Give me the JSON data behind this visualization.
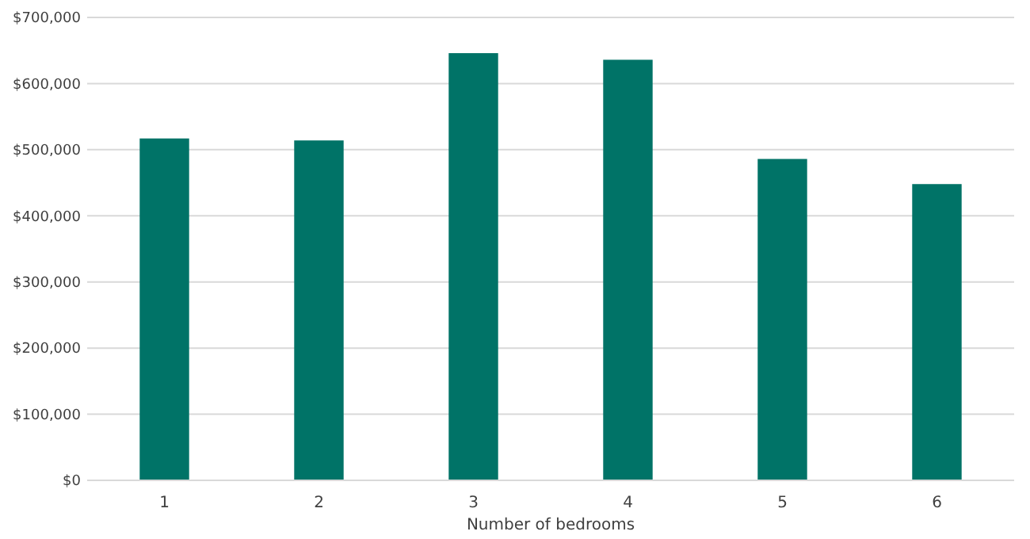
{
  "chart_data": {
    "type": "bar",
    "xlabel": "Number of bedrooms",
    "categories": [
      "1",
      "2",
      "3",
      "4",
      "5",
      "6"
    ],
    "values": [
      517000,
      514000,
      646000,
      636000,
      486000,
      448000
    ],
    "color": "#007367",
    "ylim": [
      0,
      700000
    ],
    "yticks": [
      {
        "value": 0,
        "label": "$0"
      },
      {
        "value": 100000,
        "label": "$100,000"
      },
      {
        "value": 200000,
        "label": "$200,000"
      },
      {
        "value": 300000,
        "label": "$300,000"
      },
      {
        "value": 400000,
        "label": "$400,000"
      },
      {
        "value": 500000,
        "label": "$500,000"
      },
      {
        "value": 600000,
        "label": "$600,000"
      },
      {
        "value": 700000,
        "label": "$700,000"
      }
    ],
    "grid": true
  }
}
